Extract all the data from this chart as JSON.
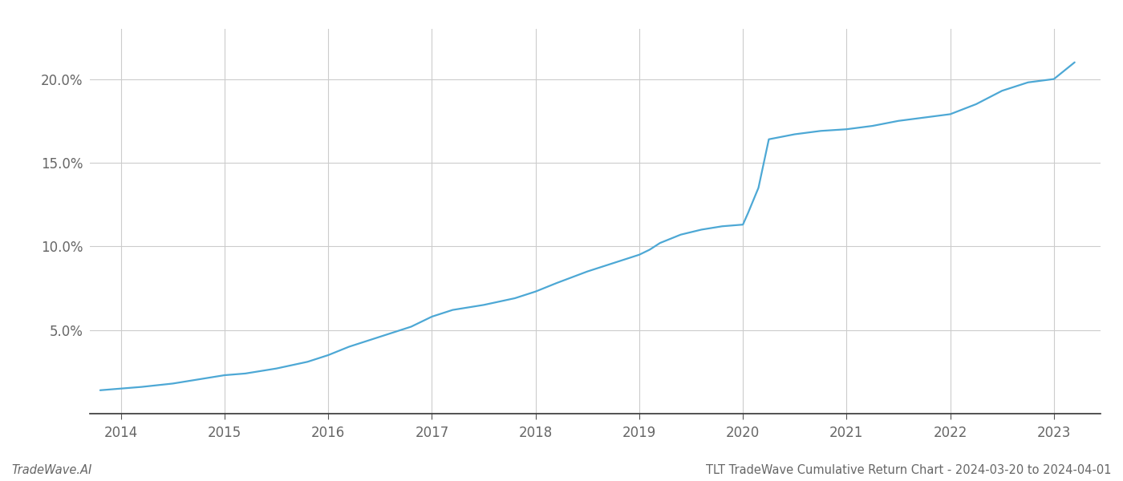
{
  "title": "TLT TradeWave Cumulative Return Chart - 2024-03-20 to 2024-04-01",
  "watermark": "TradeWave.AI",
  "line_color": "#4da8d5",
  "background_color": "#ffffff",
  "grid_color": "#cccccc",
  "x_years": [
    2014,
    2015,
    2016,
    2017,
    2018,
    2019,
    2020,
    2021,
    2022,
    2023
  ],
  "x_data": [
    2013.8,
    2014.0,
    2014.2,
    2014.5,
    2014.8,
    2015.0,
    2015.2,
    2015.5,
    2015.8,
    2016.0,
    2016.2,
    2016.5,
    2016.8,
    2017.0,
    2017.2,
    2017.5,
    2017.8,
    2018.0,
    2018.2,
    2018.5,
    2018.8,
    2019.0,
    2019.1,
    2019.2,
    2019.4,
    2019.6,
    2019.8,
    2020.0,
    2020.05,
    2020.15,
    2020.25,
    2020.5,
    2020.75,
    2021.0,
    2021.25,
    2021.5,
    2021.75,
    2022.0,
    2022.25,
    2022.5,
    2022.75,
    2023.0,
    2023.2
  ],
  "y_data": [
    1.4,
    1.5,
    1.6,
    1.8,
    2.1,
    2.3,
    2.4,
    2.7,
    3.1,
    3.5,
    4.0,
    4.6,
    5.2,
    5.8,
    6.2,
    6.5,
    6.9,
    7.3,
    7.8,
    8.5,
    9.1,
    9.5,
    9.8,
    10.2,
    10.7,
    11.0,
    11.2,
    11.3,
    12.0,
    13.5,
    16.4,
    16.7,
    16.9,
    17.0,
    17.2,
    17.5,
    17.7,
    17.9,
    18.5,
    19.3,
    19.8,
    20.0,
    21.0
  ],
  "ylim": [
    0,
    23
  ],
  "yticks": [
    5.0,
    10.0,
    15.0,
    20.0
  ],
  "xlim": [
    2013.7,
    2023.45
  ],
  "title_fontsize": 10.5,
  "watermark_fontsize": 10.5,
  "tick_fontsize": 12,
  "line_width": 1.6
}
